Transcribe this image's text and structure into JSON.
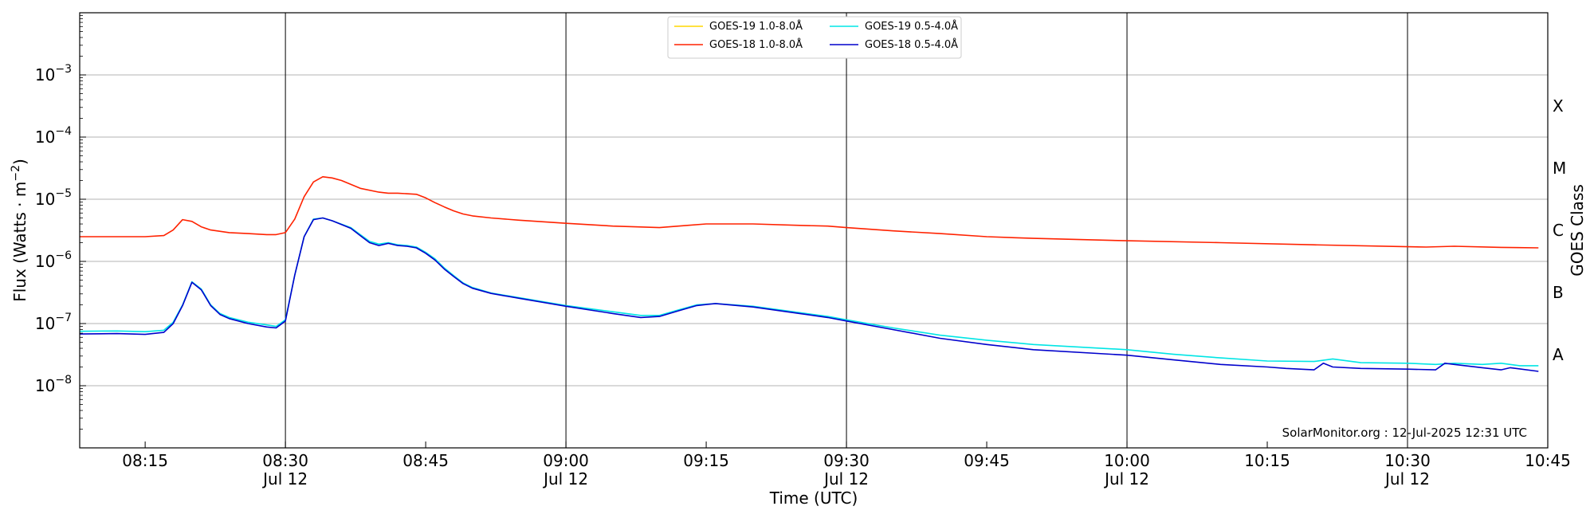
{
  "chart_data": {
    "type": "line",
    "y_scale": "log",
    "ylim": [
      "1e-9",
      "1e-2"
    ],
    "xlim": [
      "08:08",
      "10:45"
    ],
    "xlabel": "Time (UTC)",
    "ylabel": "Flux (Watts · m⁻²)",
    "ylabel_parts": {
      "prefix": "Flux (Watts · m",
      "exp": "−2",
      "suffix": ")"
    },
    "right_label": "GOES Class",
    "credit": "SolarMonitor.org : 12-Jul-2025 12:31 UTC",
    "grid": "horizontal at decades",
    "legend_position": "top-center",
    "y_ticks": [
      {
        "base": "10",
        "exp": "−3",
        "value": 0.001
      },
      {
        "base": "10",
        "exp": "−4",
        "value": 0.0001
      },
      {
        "base": "10",
        "exp": "−5",
        "value": 1e-05
      },
      {
        "base": "10",
        "exp": "−6",
        "value": 1e-06
      },
      {
        "base": "10",
        "exp": "−7",
        "value": 1e-07
      },
      {
        "base": "10",
        "exp": "−8",
        "value": 1e-08
      }
    ],
    "x_ticks": [
      {
        "time": "08:15",
        "label": "08:15",
        "sublabel": ""
      },
      {
        "time": "08:30",
        "label": "08:30",
        "sublabel": "Jul 12"
      },
      {
        "time": "08:45",
        "label": "08:45",
        "sublabel": ""
      },
      {
        "time": "09:00",
        "label": "09:00",
        "sublabel": "Jul 12"
      },
      {
        "time": "09:15",
        "label": "09:15",
        "sublabel": ""
      },
      {
        "time": "09:30",
        "label": "09:30",
        "sublabel": "Jul 12"
      },
      {
        "time": "09:45",
        "label": "09:45",
        "sublabel": ""
      },
      {
        "time": "10:00",
        "label": "10:00",
        "sublabel": "Jul 12"
      },
      {
        "time": "10:15",
        "label": "10:15",
        "sublabel": ""
      },
      {
        "time": "10:30",
        "label": "10:30",
        "sublabel": "Jul 12"
      },
      {
        "time": "10:45",
        "label": "10:45",
        "sublabel": ""
      }
    ],
    "vertical_lines": [
      "08:30",
      "09:00",
      "09:30",
      "10:00",
      "10:30"
    ],
    "goes_classes": [
      {
        "label": "X",
        "value": 0.000316
      },
      {
        "label": "M",
        "value": 3.16e-05
      },
      {
        "label": "C",
        "value": 3.16e-06
      },
      {
        "label": "B",
        "value": 3.16e-07
      },
      {
        "label": "A",
        "value": 3.16e-08
      }
    ],
    "series": [
      {
        "name": "GOES-19 1.0-8.0Å",
        "color": "#ffd700",
        "x": [],
        "values": []
      },
      {
        "name": "GOES-18 1.0-8.0Å",
        "color": "#ff2200",
        "x": [
          "08:08",
          "08:12",
          "08:15",
          "08:17",
          "08:18",
          "08:19",
          "08:20",
          "08:21",
          "08:22",
          "08:24",
          "08:26",
          "08:28",
          "08:29",
          "08:30",
          "08:31",
          "08:32",
          "08:33",
          "08:34",
          "08:35",
          "08:36",
          "08:38",
          "08:40",
          "08:41",
          "08:42",
          "08:44",
          "08:45",
          "08:46",
          "08:47",
          "08:48",
          "08:49",
          "08:50",
          "08:52",
          "08:55",
          "09:00",
          "09:05",
          "09:10",
          "09:13",
          "09:15",
          "09:20",
          "09:25",
          "09:28",
          "09:30",
          "09:35",
          "09:40",
          "09:45",
          "09:50",
          "10:00",
          "10:10",
          "10:20",
          "10:30",
          "10:32",
          "10:35",
          "10:40",
          "10:44"
        ],
        "values": [
          2.5e-06,
          2.5e-06,
          2.5e-06,
          2.6e-06,
          3.2e-06,
          4.7e-06,
          4.4e-06,
          3.6e-06,
          3.2e-06,
          2.9e-06,
          2.8e-06,
          2.7e-06,
          2.7e-06,
          2.9e-06,
          4.8e-06,
          1.1e-05,
          1.9e-05,
          2.3e-05,
          2.2e-05,
          2e-05,
          1.5e-05,
          1.3e-05,
          1.25e-05,
          1.25e-05,
          1.2e-05,
          1.05e-05,
          8.8e-06,
          7.5e-06,
          6.5e-06,
          5.8e-06,
          5.4e-06,
          5e-06,
          4.6e-06,
          4.1e-06,
          3.7e-06,
          3.5e-06,
          3.8e-06,
          4e-06,
          4e-06,
          3.8e-06,
          3.7e-06,
          3.5e-06,
          3.1e-06,
          2.8e-06,
          2.5e-06,
          2.35e-06,
          2.15e-06,
          2e-06,
          1.85e-06,
          1.72e-06,
          1.7e-06,
          1.75e-06,
          1.68e-06,
          1.65e-06
        ]
      },
      {
        "name": "GOES-19 0.5-4.0Å",
        "color": "#00e5e5",
        "x": [
          "08:08",
          "08:12",
          "08:15",
          "08:17",
          "08:18",
          "08:19",
          "08:20",
          "08:21",
          "08:22",
          "08:23",
          "08:24",
          "08:26",
          "08:28",
          "08:29",
          "08:30",
          "08:31",
          "08:32",
          "08:33",
          "08:34",
          "08:35",
          "08:37",
          "08:38",
          "08:39",
          "08:40",
          "08:41",
          "08:42",
          "08:43",
          "08:44",
          "08:45",
          "08:46",
          "08:47",
          "08:48",
          "08:49",
          "08:50",
          "08:52",
          "08:55",
          "09:00",
          "09:05",
          "09:08",
          "09:10",
          "09:12",
          "09:14",
          "09:16",
          "09:20",
          "09:25",
          "09:28",
          "09:30",
          "09:35",
          "09:40",
          "09:45",
          "09:50",
          "10:00",
          "10:05",
          "10:10",
          "10:15",
          "10:20",
          "10:22",
          "10:25",
          "10:30",
          "10:33",
          "10:35",
          "10:38",
          "10:40",
          "10:42",
          "10:44"
        ],
        "values": [
          7.5e-08,
          7.6e-08,
          7.4e-08,
          7.8e-08,
          1.05e-07,
          2e-07,
          4.7e-07,
          3.6e-07,
          2e-07,
          1.45e-07,
          1.25e-07,
          1.05e-07,
          9.5e-08,
          9e-08,
          1.15e-07,
          6e-07,
          2.5e-06,
          4.8e-06,
          5e-06,
          4.5e-06,
          3.5e-06,
          2.7e-06,
          2.1e-06,
          1.9e-06,
          2e-06,
          1.85e-06,
          1.8e-06,
          1.7e-06,
          1.4e-06,
          1.1e-06,
          7.8e-07,
          5.9e-07,
          4.5e-07,
          3.8e-07,
          3.1e-07,
          2.6e-07,
          1.95e-07,
          1.55e-07,
          1.35e-07,
          1.35e-07,
          1.65e-07,
          2e-07,
          2.1e-07,
          1.9e-07,
          1.5e-07,
          1.3e-07,
          1.15e-07,
          8.5e-08,
          6.5e-08,
          5.4e-08,
          4.6e-08,
          3.8e-08,
          3.2e-08,
          2.8e-08,
          2.5e-08,
          2.45e-08,
          2.7e-08,
          2.35e-08,
          2.3e-08,
          2.2e-08,
          2.3e-08,
          2.2e-08,
          2.3e-08,
          2.1e-08,
          2.1e-08
        ]
      },
      {
        "name": "GOES-18 0.5-4.0Å",
        "color": "#0000cc",
        "x": [
          "08:08",
          "08:12",
          "08:15",
          "08:17",
          "08:18",
          "08:19",
          "08:20",
          "08:21",
          "08:22",
          "08:23",
          "08:24",
          "08:26",
          "08:28",
          "08:29",
          "08:30",
          "08:31",
          "08:32",
          "08:33",
          "08:34",
          "08:35",
          "08:37",
          "08:38",
          "08:39",
          "08:40",
          "08:41",
          "08:42",
          "08:43",
          "08:44",
          "08:45",
          "08:46",
          "08:47",
          "08:48",
          "08:49",
          "08:50",
          "08:52",
          "08:55",
          "09:00",
          "09:05",
          "09:08",
          "09:10",
          "09:12",
          "09:14",
          "09:16",
          "09:20",
          "09:25",
          "09:28",
          "09:30",
          "09:35",
          "09:40",
          "09:45",
          "09:50",
          "10:00",
          "10:05",
          "10:10",
          "10:15",
          "10:17",
          "10:20",
          "10:21",
          "10:22",
          "10:25",
          "10:30",
          "10:33",
          "10:34",
          "10:35",
          "10:38",
          "10:40",
          "10:41",
          "10:44"
        ],
        "values": [
          6.8e-08,
          6.9e-08,
          6.7e-08,
          7.2e-08,
          1e-07,
          1.95e-07,
          4.6e-07,
          3.5e-07,
          1.95e-07,
          1.4e-07,
          1.2e-07,
          1e-07,
          8.8e-08,
          8.5e-08,
          1.1e-07,
          6e-07,
          2.5e-06,
          4.7e-06,
          5e-06,
          4.5e-06,
          3.4e-06,
          2.6e-06,
          2e-06,
          1.8e-06,
          1.95e-06,
          1.8e-06,
          1.75e-06,
          1.65e-06,
          1.35e-06,
          1.05e-06,
          7.5e-07,
          5.7e-07,
          4.4e-07,
          3.7e-07,
          3.05e-07,
          2.55e-07,
          1.9e-07,
          1.45e-07,
          1.25e-07,
          1.3e-07,
          1.6e-07,
          1.95e-07,
          2.1e-07,
          1.85e-07,
          1.45e-07,
          1.25e-07,
          1.1e-07,
          8e-08,
          5.8e-08,
          4.6e-08,
          3.8e-08,
          3.1e-08,
          2.6e-08,
          2.2e-08,
          2e-08,
          1.9e-08,
          1.8e-08,
          2.3e-08,
          2e-08,
          1.9e-08,
          1.85e-08,
          1.8e-08,
          2.3e-08,
          2.2e-08,
          1.95e-08,
          1.8e-08,
          1.95e-08,
          1.7e-08
        ]
      }
    ]
  }
}
